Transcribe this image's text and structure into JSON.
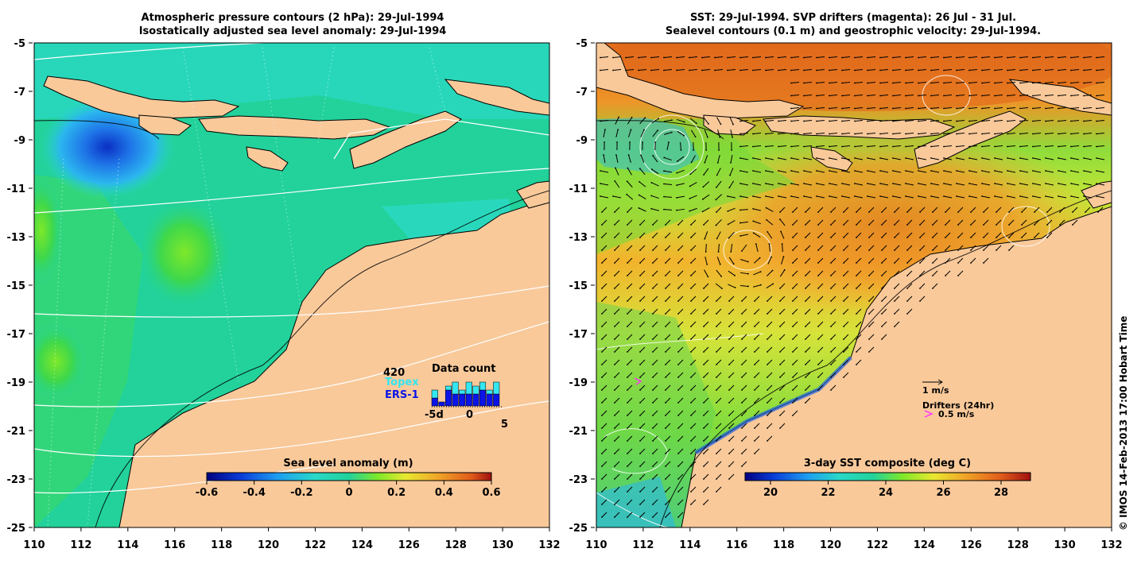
{
  "left_map": {
    "title_line1": "Atmospheric pressure contours (2 hPa): 29-Jul-1994",
    "title_line2": "Isostatically adjusted sea level anomaly: 29-Jul-1994",
    "colorbar": {
      "label": "Sea level anomaly (m)",
      "ticks": [
        "-0.6",
        "-0.4",
        "-0.2",
        "0",
        "0.2",
        "0.4",
        "0.6"
      ]
    },
    "data_count": {
      "title": "Data count",
      "total": "420",
      "topex_label": "Topex",
      "ers_label": "ERS-1",
      "axis_labels": [
        "-5d",
        "0",
        "5"
      ],
      "topex_color": "#33e6f0",
      "ers_color": "#0a14e6",
      "bars": [
        {
          "topex": 2,
          "ers": 2
        },
        {
          "topex": 0,
          "ers": 1
        },
        {
          "topex": 1,
          "ers": 4
        },
        {
          "topex": 3,
          "ers": 3
        },
        {
          "topex": 1,
          "ers": 3
        },
        {
          "topex": 3,
          "ers": 3
        },
        {
          "topex": 2,
          "ers": 3
        },
        {
          "topex": 2,
          "ers": 4
        },
        {
          "topex": 1,
          "ers": 3
        },
        {
          "topex": 3,
          "ers": 3
        }
      ]
    }
  },
  "right_map": {
    "title_line1": "SST: 29-Jul-1994. SVP drifters (magenta): 26 Jul - 31 Jul.",
    "title_line2": "Sealevel contours (0.1 m) and geostrophic velocity: 29-Jul-1994.",
    "colorbar": {
      "label": "3-day SST composite (deg C)",
      "ticks": [
        "20",
        "22",
        "24",
        "26",
        "28"
      ]
    },
    "velocity_scale_label": "1 m/s",
    "drifters_label": "Drifters (24hr)",
    "drifter_speed_label": "0.5 m/s"
  },
  "axes": {
    "y_labels": [
      "-5",
      "-7",
      "-9",
      "-11",
      "-13",
      "-15",
      "-17",
      "-19",
      "-21",
      "-23",
      "-25"
    ],
    "x_labels": [
      "110",
      "112",
      "114",
      "116",
      "118",
      "120",
      "122",
      "124",
      "126",
      "128",
      "130",
      "132"
    ]
  },
  "copyright": "© IMOS 14-Feb-2013 17:00 Hobart Time",
  "colors": {
    "land": "#f9c99a",
    "ocean_green": "#22d29a",
    "drifter": "#ff33ff"
  }
}
